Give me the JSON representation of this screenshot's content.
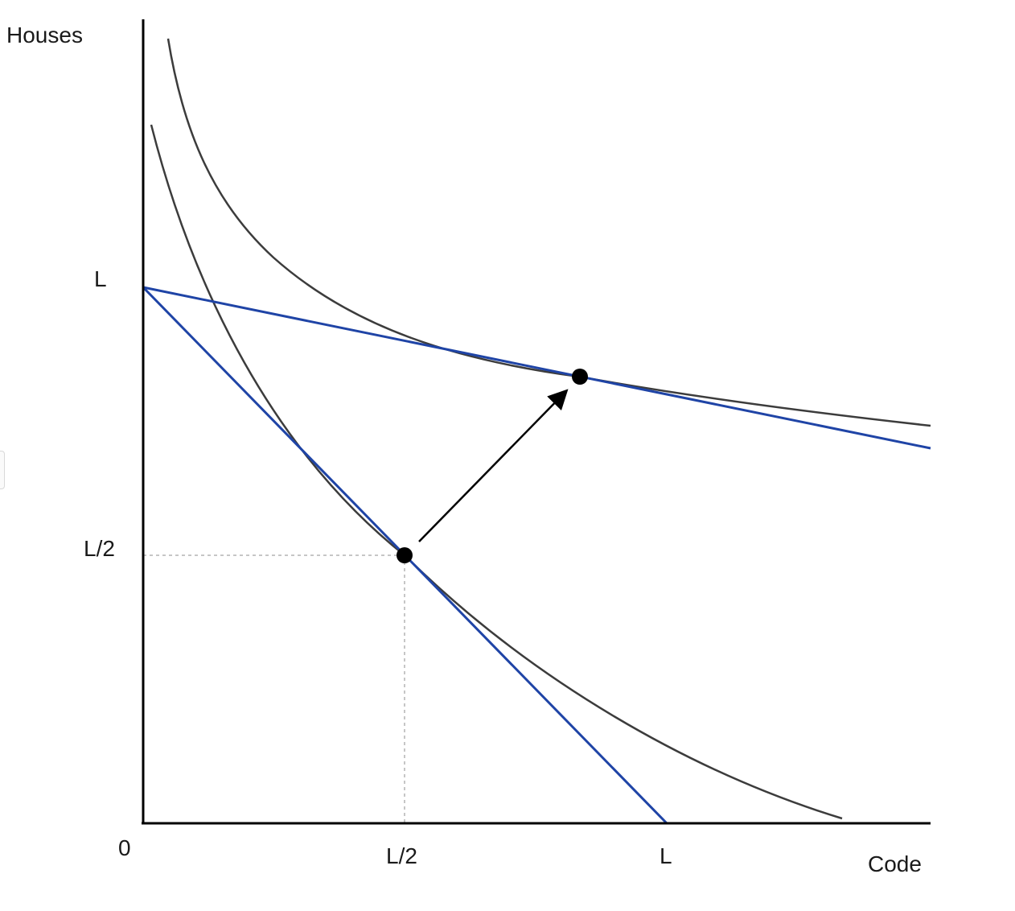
{
  "axes": {
    "y_title": "Houses",
    "x_title": "Code",
    "origin_label": "0",
    "y_ticks": [
      "L",
      "L/2"
    ],
    "x_ticks": [
      "L/2",
      "L"
    ]
  },
  "colors": {
    "axis": "#000000",
    "budget_line": "#1f44a6",
    "indifference_curve": "#3c3c3c",
    "point": "#000000",
    "guide": "#b4b4b4"
  }
}
